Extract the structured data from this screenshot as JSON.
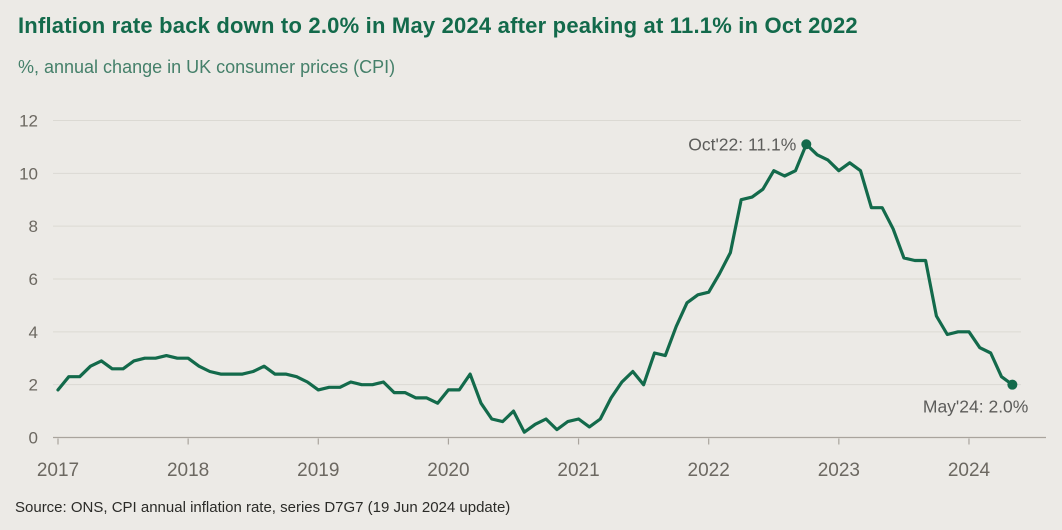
{
  "title": "Inflation rate back down to 2.0% in May 2024 after peaking at 11.1% in Oct 2022",
  "subtitle": "%, annual change in UK consumer prices (CPI)",
  "source": "Source: ONS, CPI annual inflation rate, series D7G7 (19 Jun 2024 update)",
  "colors": {
    "background": "#ECEAE6",
    "title": "#136A4B",
    "subtitle": "#45806A",
    "line": "#136A4B",
    "grid": "#DBD9D3",
    "axis": "#A9A49D",
    "tick_label": "#6C6861",
    "annotation": "#5C5C5A"
  },
  "chart_data": {
    "type": "line",
    "title": "Inflation rate back down to 2.0% in May 2024 after peaking at 11.1% in Oct 2022",
    "ylabel": "%, annual change in UK consumer prices (CPI)",
    "x_frequency": "monthly",
    "x_start": "2017-01",
    "x_end": "2024-05",
    "x_tick_labels": [
      "2017",
      "2018",
      "2019",
      "2020",
      "2021",
      "2022",
      "2023",
      "2024"
    ],
    "y_ticks": [
      0,
      2,
      4,
      6,
      8,
      10,
      12
    ],
    "ylim": [
      0,
      12
    ],
    "grid": "horizontal",
    "legend": "none",
    "series": [
      {
        "name": "CPI annual inflation rate (D7G7)",
        "monthly_values": [
          1.8,
          2.3,
          2.3,
          2.7,
          2.9,
          2.6,
          2.6,
          2.9,
          3.0,
          3.0,
          3.1,
          3.0,
          3.0,
          2.7,
          2.5,
          2.4,
          2.4,
          2.4,
          2.5,
          2.7,
          2.4,
          2.4,
          2.3,
          2.1,
          1.8,
          1.9,
          1.9,
          2.1,
          2.0,
          2.0,
          2.1,
          1.7,
          1.7,
          1.5,
          1.5,
          1.3,
          1.8,
          1.8,
          2.4,
          1.3,
          0.7,
          0.6,
          1.0,
          0.2,
          0.5,
          0.7,
          0.3,
          0.6,
          0.7,
          0.4,
          0.7,
          1.5,
          2.1,
          2.5,
          2.0,
          3.2,
          3.1,
          4.2,
          5.1,
          5.4,
          5.5,
          6.2,
          7.0,
          9.0,
          9.1,
          9.4,
          10.1,
          9.9,
          10.1,
          11.1,
          10.7,
          10.5,
          10.1,
          10.4,
          10.1,
          8.7,
          8.7,
          7.9,
          6.8,
          6.7,
          6.7,
          4.6,
          3.9,
          4.0,
          4.0,
          3.4,
          3.2,
          2.3,
          2.0
        ]
      }
    ],
    "annotations": [
      {
        "label": "Oct'22: 11.1%",
        "month_index": 69,
        "value": 11.1,
        "marker": "dot",
        "label_side": "left"
      },
      {
        "label": "May'24: 2.0%",
        "month_index": 88,
        "value": 2.0,
        "marker": "dot",
        "label_side": "below"
      }
    ]
  }
}
